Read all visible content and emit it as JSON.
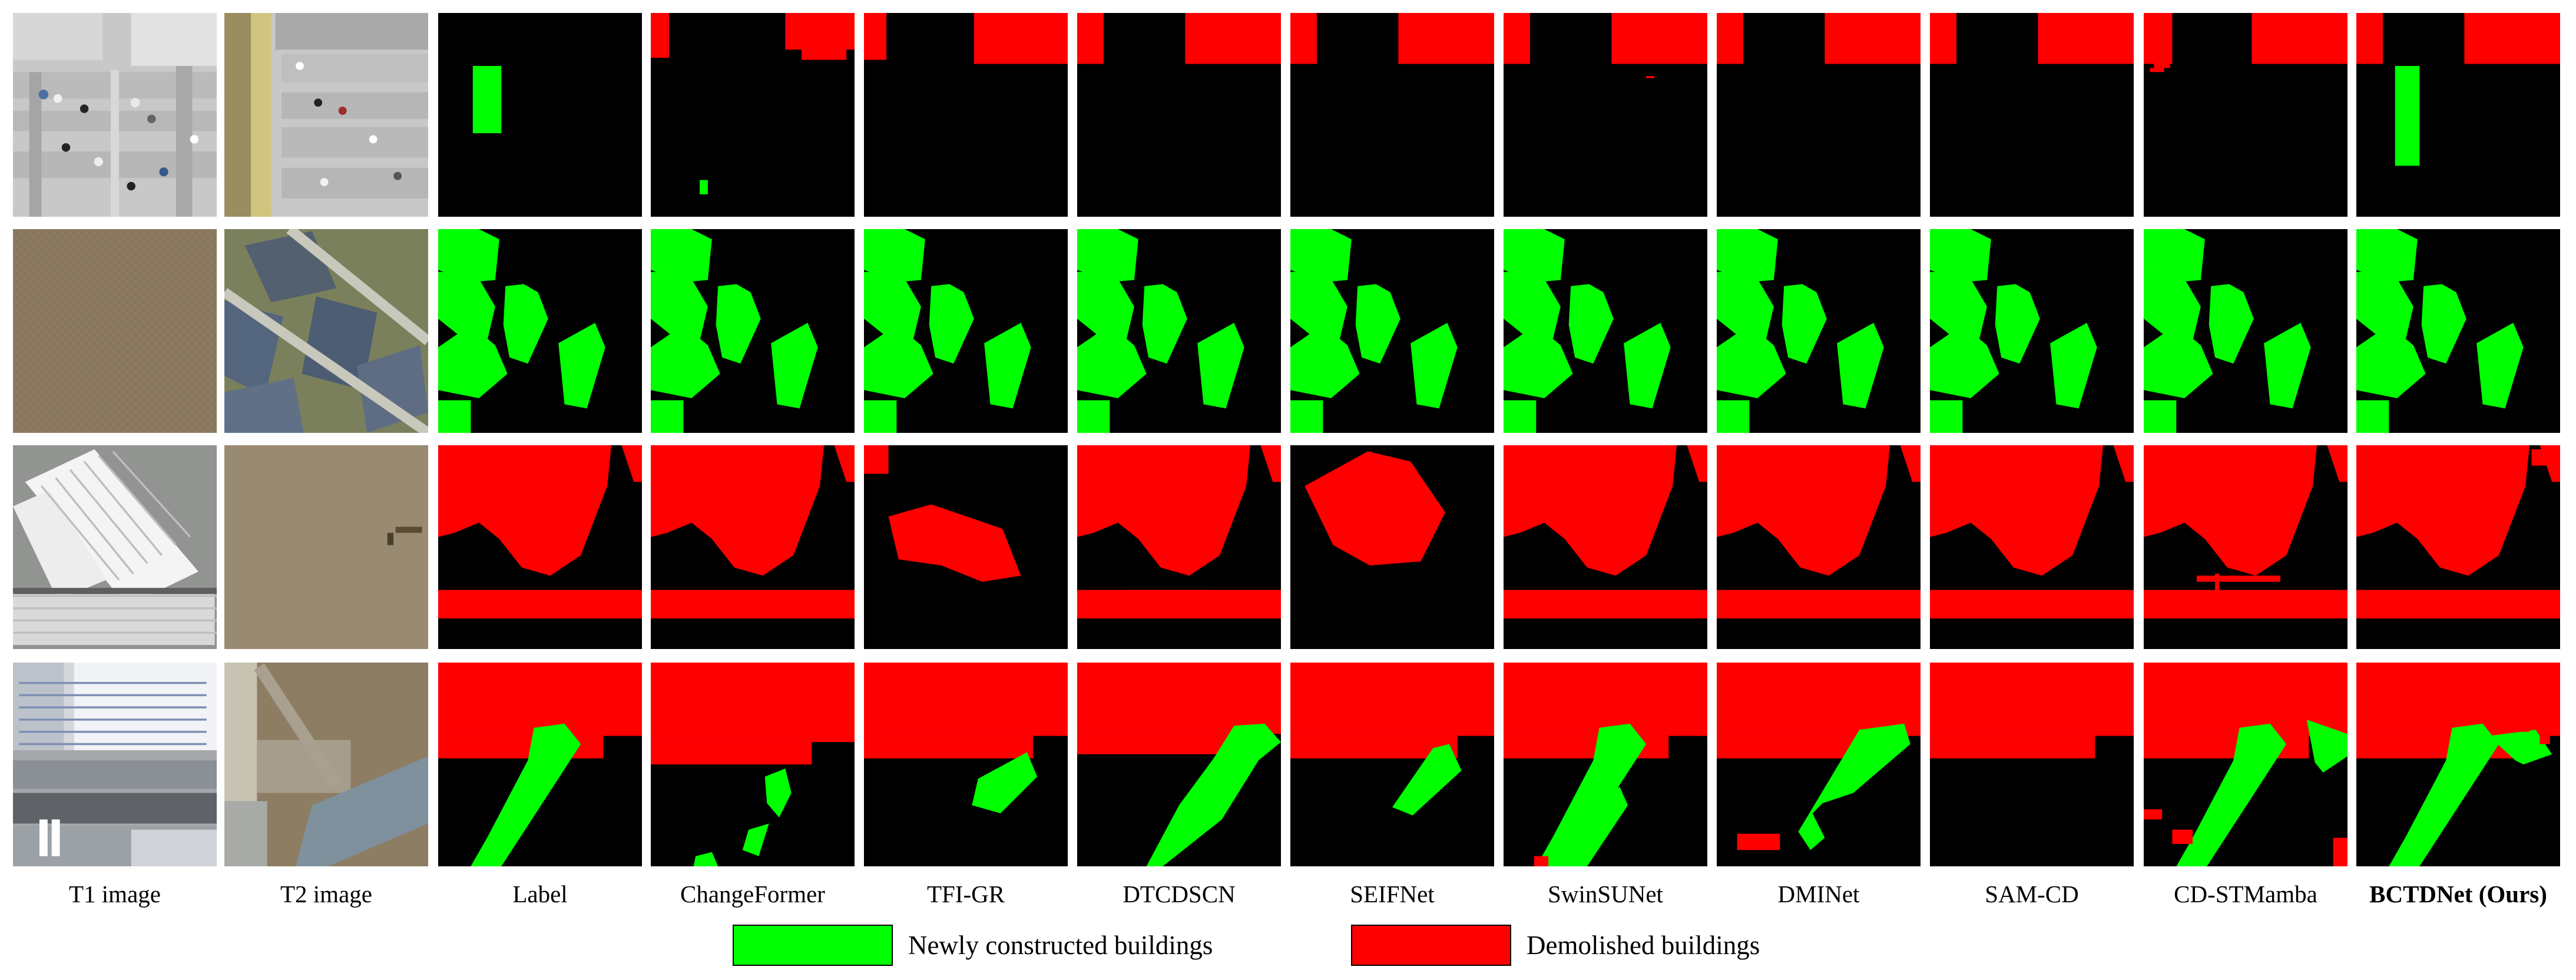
{
  "figure": {
    "columns": [
      "T1 image",
      "T2 image",
      "Label",
      "ChangeFormer",
      "TFI-GR",
      "DTCDSCN",
      "SEIFNet",
      "SwinSUNet",
      "DMINet",
      "SAM-CD",
      "CD-STMamba",
      "BCTDNet (Ours)"
    ],
    "rows": 4
  },
  "legend": {
    "items": [
      {
        "label": "Newly constructed  buildings",
        "color": "#00ff00"
      },
      {
        "label": "Demolished buildings",
        "color": "#ff0000"
      }
    ]
  }
}
